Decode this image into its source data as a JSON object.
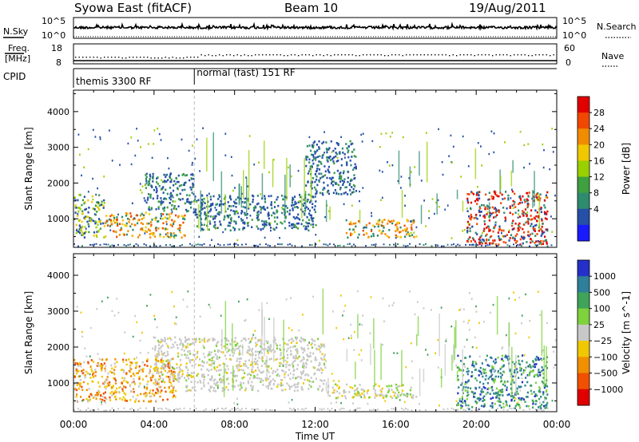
{
  "header": {
    "title": "Syowa East (fitACF)",
    "beam": "Beam 10",
    "date": "19/Aug/2011"
  },
  "top_panels": {
    "nsky_label": "N.Sky",
    "nsearch_label": "N.Search",
    "nsky_top_tick": "10^5",
    "nsky_bottom_tick": "10^0",
    "freq_label_1": "Freq.",
    "freq_label_2": "[MHz]",
    "freq_ticks": [
      "18",
      "8"
    ],
    "nave_label": "Nave",
    "nave_ticks": [
      "60",
      "0"
    ],
    "cpid_label": "CPID",
    "cpid_modes": [
      {
        "name": "themis 3300 RF",
        "start_hour": 0
      },
      {
        "name": "normal (fast) 151 RF",
        "start_hour": 6
      }
    ]
  },
  "chart_data": [
    {
      "type": "heatmap",
      "title": "",
      "ylabel": "Slant Range [km]",
      "ylim": [
        200,
        4600
      ],
      "yticks": [
        "1000",
        "2000",
        "3000",
        "4000"
      ],
      "colorbar_label": "Power [dB]",
      "colorbar_ticks": [
        "28",
        "24",
        "20",
        "16",
        "12",
        "8",
        "4"
      ],
      "colorbar_colors": [
        "#e00000",
        "#f04800",
        "#f08c00",
        "#f0c800",
        "#9ad000",
        "#3ea03e",
        "#2e8c6e",
        "#264fa8",
        "#1a1aff"
      ],
      "regions": [
        {
          "x": [
            0,
            1.5
          ],
          "y": [
            500,
            1700
          ],
          "level": "mixed"
        },
        {
          "x": [
            1.5,
            5.5
          ],
          "y": [
            500,
            1200
          ],
          "level": "high"
        },
        {
          "x": [
            3.5,
            6
          ],
          "y": [
            1200,
            2300
          ],
          "level": "low"
        },
        {
          "x": [
            6,
            12
          ],
          "y": [
            700,
            1700
          ],
          "level": "low"
        },
        {
          "x": [
            11.5,
            14
          ],
          "y": [
            1700,
            3200
          ],
          "level": "low"
        },
        {
          "x": [
            13.5,
            17
          ],
          "y": [
            500,
            1000
          ],
          "level": "high"
        },
        {
          "x": [
            19.5,
            23.5
          ],
          "y": [
            300,
            1800
          ],
          "level": "very-high"
        }
      ]
    },
    {
      "type": "heatmap",
      "title": "",
      "xlabel": "Time UT",
      "xlim": [
        0,
        24
      ],
      "xticks": [
        "00:00",
        "04:00",
        "08:00",
        "12:00",
        "16:00",
        "20:00",
        "00:00"
      ],
      "ylabel": "Slant Range [km]",
      "ylim": [
        200,
        4600
      ],
      "yticks": [
        "1000",
        "2000",
        "3000",
        "4000"
      ],
      "colorbar_label": "Velocity [m s^-1]",
      "colorbar_ticks": [
        "1000",
        "500",
        "100",
        "25",
        "−25",
        "−100",
        "−500",
        "−1000"
      ],
      "colorbar_colors": [
        "#2430c8",
        "#2e7f9a",
        "#3fa35a",
        "#7ed23c",
        "#c8c8c8",
        "#f0c800",
        "#f09000",
        "#f05000",
        "#e00000"
      ],
      "regions": [
        {
          "x": [
            0,
            5
          ],
          "y": [
            500,
            1700
          ],
          "level": "negative"
        },
        {
          "x": [
            4,
            12.5
          ],
          "y": [
            800,
            2300
          ],
          "level": "near-zero"
        },
        {
          "x": [
            12.5,
            17
          ],
          "y": [
            600,
            1000
          ],
          "level": "mixed"
        },
        {
          "x": [
            19,
            23.5
          ],
          "y": [
            300,
            1800
          ],
          "level": "positive"
        }
      ]
    }
  ]
}
